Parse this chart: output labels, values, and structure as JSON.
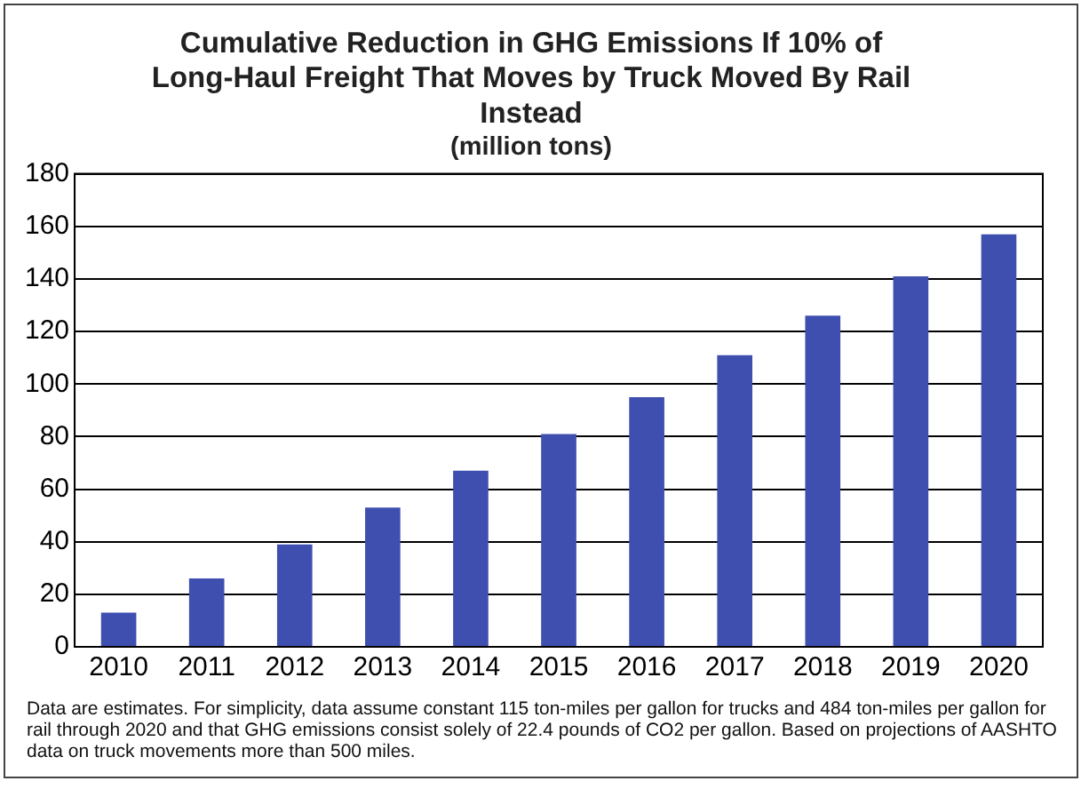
{
  "chart_data": {
    "type": "bar",
    "title": "Cumulative Reduction in GHG Emissions If 10% of Long-Haul Freight That Moves by Truck Moved By Rail Instead",
    "subtitle": "(million tons)",
    "categories": [
      "2010",
      "2011",
      "2012",
      "2013",
      "2014",
      "2015",
      "2016",
      "2017",
      "2018",
      "2019",
      "2020"
    ],
    "values": [
      13,
      26,
      39,
      53,
      67,
      81,
      95,
      111,
      126,
      141,
      157
    ],
    "color": "#3f4fb0",
    "ylim": [
      0,
      180
    ],
    "yticks": [
      0,
      20,
      40,
      60,
      80,
      100,
      120,
      140,
      160,
      180
    ],
    "grid": "y",
    "legend": false,
    "annotations": [
      "Data are estimates.  For simplicity, data assume constant 115 ton-miles per gallon for trucks and 484 ton-miles per gallon for rail through 2020 and that GHG emissions consist solely of 22.4 pounds of CO2 per gallon.  Based on projections of AASHTO data on truck movements more than 500 miles."
    ]
  }
}
